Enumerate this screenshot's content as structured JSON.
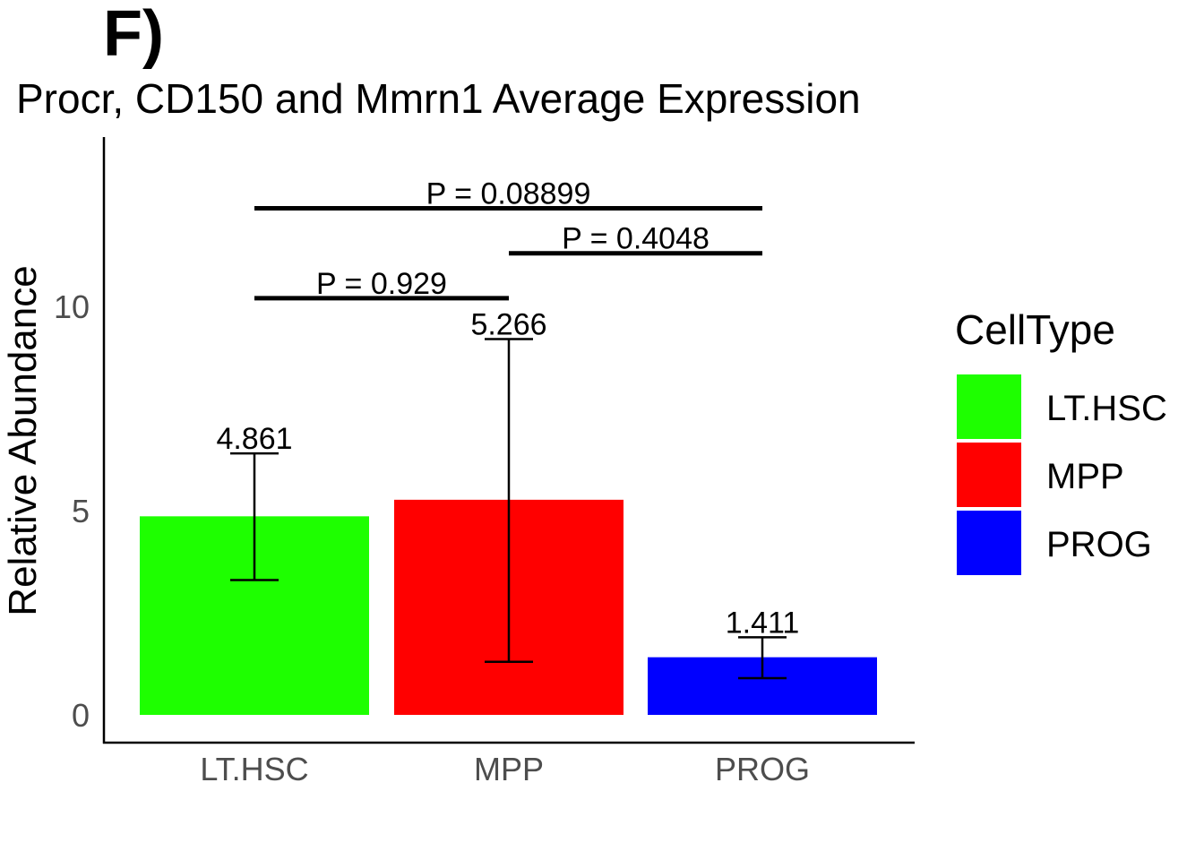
{
  "panel_label": "F)",
  "chart_data": {
    "type": "bar",
    "title": "Procr, CD150 and Mmrn1 Average Expression",
    "xlabel": "",
    "ylabel": "Relative Abundance",
    "categories": [
      "LT.HSC",
      "MPP",
      "PROG"
    ],
    "values": [
      4.861,
      5.266,
      1.411
    ],
    "value_labels": [
      "4.861",
      "5.266",
      "1.411"
    ],
    "error_bars": [
      {
        "low": 3.3,
        "high": 6.4
      },
      {
        "low": 1.3,
        "high": 9.2
      },
      {
        "low": 0.9,
        "high": 1.9
      }
    ],
    "colors": [
      "#1eff00",
      "#ff0000",
      "#0000ff"
    ],
    "ylim": [
      0,
      13.5
    ],
    "yticks": [
      0,
      5,
      10
    ],
    "ytick_labels": [
      "0",
      "5",
      "10"
    ],
    "grid": false,
    "legend": {
      "title": "CellType",
      "position": "right",
      "entries": [
        "LT.HSC",
        "MPP",
        "PROG"
      ]
    },
    "comparisons": [
      {
        "from": "LT.HSC",
        "to": "PROG",
        "label": "P = 0.08899",
        "y": 12.4
      },
      {
        "from": "MPP",
        "to": "PROG",
        "label": "P = 0.4048",
        "y": 11.3
      },
      {
        "from": "LT.HSC",
        "to": "MPP",
        "label": "P = 0.929",
        "y": 10.2
      }
    ]
  }
}
